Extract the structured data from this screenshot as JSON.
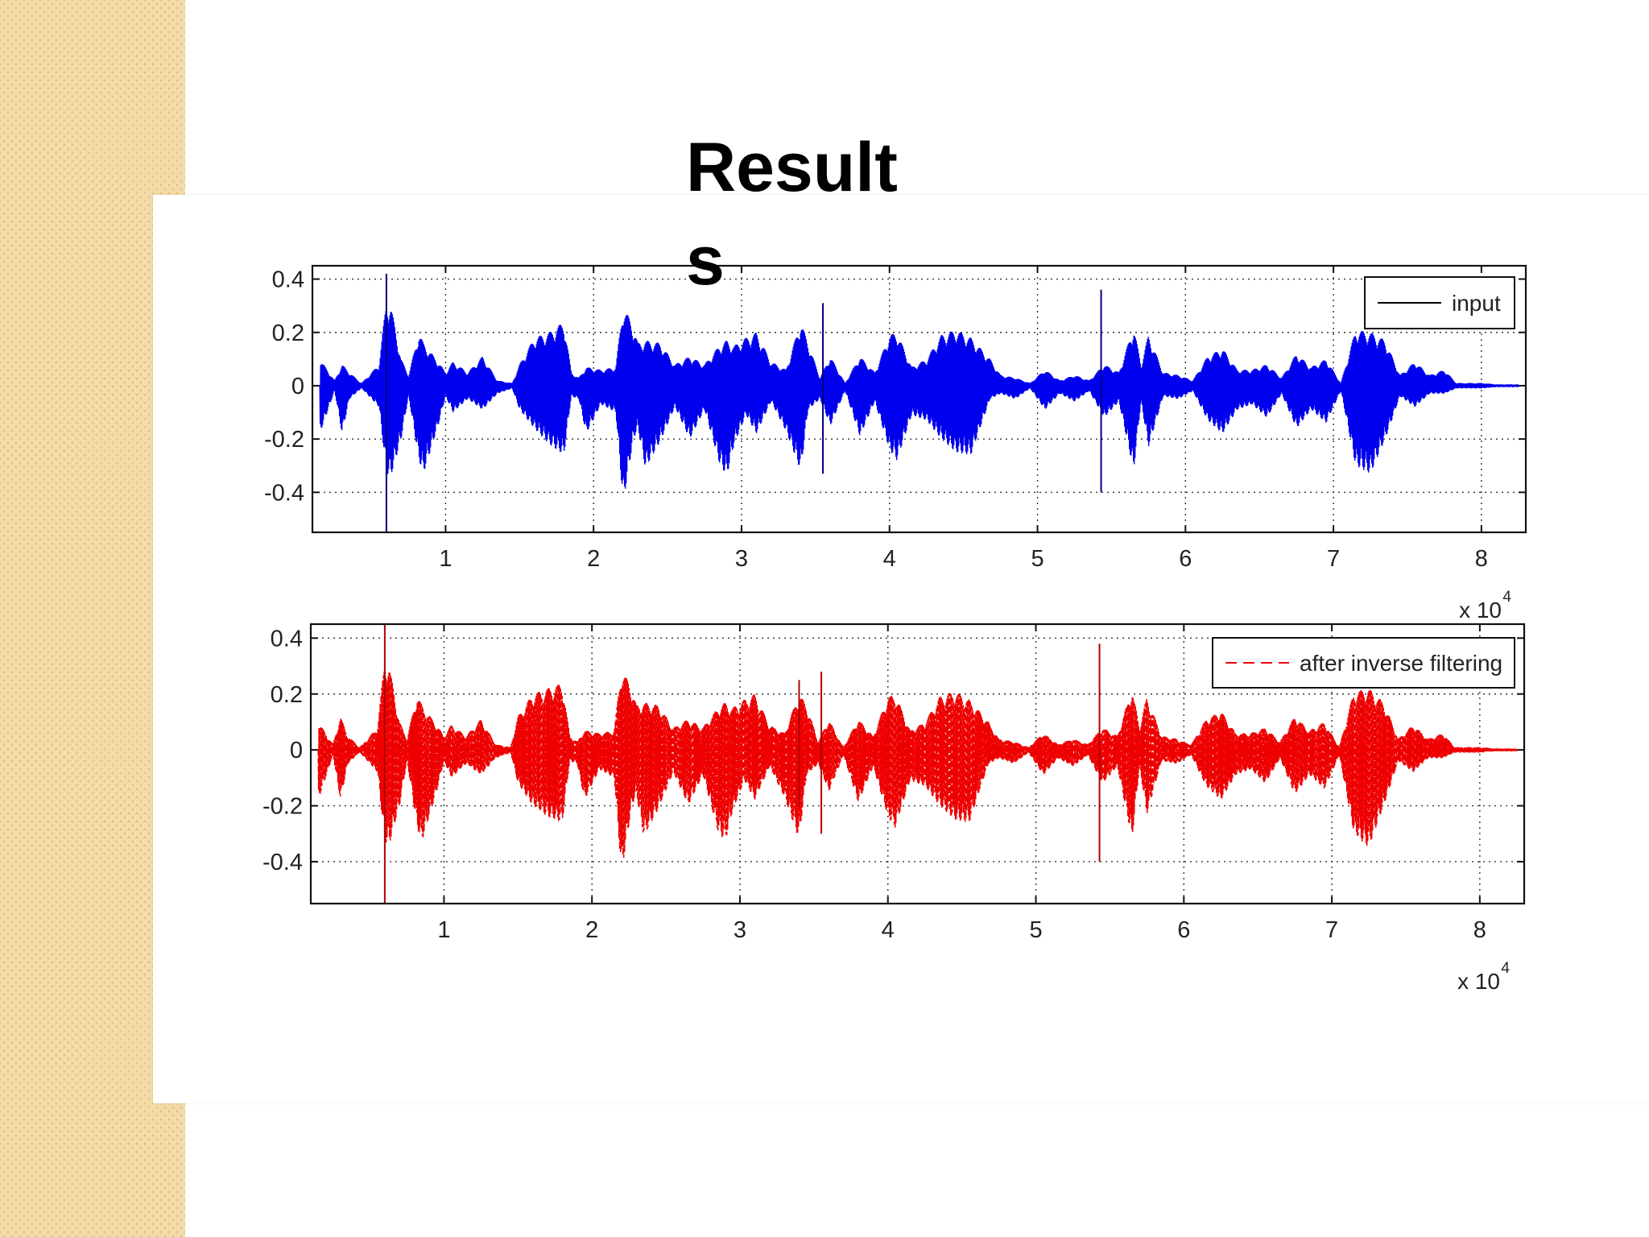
{
  "slide": {
    "title": "Results"
  },
  "chart_data": [
    {
      "type": "line",
      "color": "#0000ee",
      "line_style": "solid",
      "series": [
        {
          "name": "input"
        }
      ],
      "legend_position": "top-right",
      "grid": true,
      "grid_style": "dotted",
      "xlim": [
        1000,
        83000
      ],
      "ylim": [
        -0.55,
        0.45
      ],
      "xticks": [
        10000,
        20000,
        30000,
        40000,
        50000,
        60000,
        70000,
        80000
      ],
      "xtick_labels": [
        "1",
        "2",
        "3",
        "4",
        "5",
        "6",
        "7",
        "8"
      ],
      "yticks": [
        0.4,
        0.2,
        0,
        -0.2,
        -0.4
      ],
      "ytick_labels": [
        "0.4",
        "0.2",
        "0",
        "-0.2",
        "-0.4"
      ],
      "x_exponent_label": {
        "base": "x 10",
        "power": "4"
      },
      "x_scale_factor": 10000,
      "envelope": {
        "x": [
          1500,
          2500,
          3000,
          3500,
          4300,
          4500,
          5500,
          6000,
          6300,
          7000,
          7500,
          8200,
          8500,
          9500,
          10000,
          10500,
          11500,
          12500,
          13500,
          14500,
          15000,
          16000,
          17000,
          18000,
          18500,
          19000,
          19500,
          20500,
          21500,
          22000,
          22700,
          23000,
          23500,
          24500,
          25500,
          26500,
          27500,
          28500,
          29000,
          29500,
          30300,
          31000,
          32000,
          33000,
          34000,
          34500,
          35300,
          36000,
          37000,
          38000,
          39000,
          40000,
          40500,
          41500,
          42500,
          43500,
          44500,
          45500,
          46800,
          47500,
          48500,
          49500,
          50500,
          51500,
          52500,
          53500,
          54500,
          55500,
          56500,
          57000,
          57500,
          58500,
          59500,
          60500,
          61500,
          62500,
          63500,
          64500,
          65500,
          66500,
          67500,
          68500,
          69500,
          70500,
          71500,
          72500,
          73500,
          74500,
          75500,
          76500,
          77500,
          78300,
          79000,
          80000,
          81000,
          82500
        ],
        "upper": [
          0.1,
          0.02,
          0.08,
          0.05,
          0.01,
          0.02,
          0.08,
          0.32,
          0.3,
          0.1,
          0.04,
          0.2,
          0.16,
          0.09,
          0.05,
          0.09,
          0.05,
          0.11,
          0.02,
          0.01,
          0.08,
          0.18,
          0.2,
          0.24,
          0.05,
          0.03,
          0.07,
          0.06,
          0.07,
          0.3,
          0.22,
          0.16,
          0.17,
          0.16,
          0.08,
          0.11,
          0.08,
          0.15,
          0.17,
          0.15,
          0.18,
          0.2,
          0.09,
          0.06,
          0.24,
          0.16,
          0.03,
          0.11,
          0.01,
          0.11,
          0.05,
          0.19,
          0.2,
          0.07,
          0.1,
          0.19,
          0.21,
          0.18,
          0.1,
          0.04,
          0.03,
          0.01,
          0.06,
          0.02,
          0.04,
          0.02,
          0.08,
          0.05,
          0.22,
          0.08,
          0.19,
          0.05,
          0.04,
          0.02,
          0.11,
          0.14,
          0.06,
          0.06,
          0.08,
          0.03,
          0.12,
          0.07,
          0.1,
          0.01,
          0.21,
          0.2,
          0.17,
          0.04,
          0.09,
          0.04,
          0.06,
          0.01,
          0.01,
          0.01,
          0.005,
          0.005
        ],
        "lower": [
          -0.18,
          -0.02,
          -0.18,
          -0.05,
          -0.01,
          -0.02,
          -0.08,
          -0.33,
          -0.34,
          -0.2,
          -0.04,
          -0.28,
          -0.33,
          -0.15,
          -0.04,
          -0.1,
          -0.05,
          -0.09,
          -0.03,
          -0.01,
          -0.09,
          -0.16,
          -0.22,
          -0.26,
          -0.04,
          -0.05,
          -0.18,
          -0.07,
          -0.1,
          -0.44,
          -0.2,
          -0.16,
          -0.31,
          -0.21,
          -0.08,
          -0.2,
          -0.09,
          -0.29,
          -0.34,
          -0.22,
          -0.11,
          -0.18,
          -0.06,
          -0.17,
          -0.32,
          -0.09,
          -0.05,
          -0.15,
          -0.02,
          -0.19,
          -0.06,
          -0.24,
          -0.28,
          -0.11,
          -0.13,
          -0.2,
          -0.25,
          -0.26,
          -0.05,
          -0.03,
          -0.05,
          -0.01,
          -0.09,
          -0.03,
          -0.06,
          -0.02,
          -0.12,
          -0.06,
          -0.32,
          -0.06,
          -0.23,
          -0.04,
          -0.05,
          -0.02,
          -0.13,
          -0.18,
          -0.09,
          -0.07,
          -0.12,
          -0.03,
          -0.16,
          -0.09,
          -0.14,
          -0.02,
          -0.3,
          -0.33,
          -0.2,
          -0.04,
          -0.08,
          -0.03,
          -0.03,
          -0.01,
          -0.01,
          -0.01,
          -0.005,
          -0.005
        ]
      },
      "spikes": [
        {
          "x": 6000,
          "high": 0.42,
          "low": -0.55
        },
        {
          "x": 35500,
          "high": 0.31,
          "low": -0.33
        },
        {
          "x": 54300,
          "high": 0.36,
          "low": -0.4
        }
      ]
    },
    {
      "type": "line",
      "color": "#ee0000",
      "line_style": "dashed",
      "series": [
        {
          "name": "after inverse filtering"
        }
      ],
      "legend_position": "top-right",
      "grid": true,
      "grid_style": "dotted",
      "xlim": [
        1000,
        83000
      ],
      "ylim": [
        -0.55,
        0.45
      ],
      "xticks": [
        10000,
        20000,
        30000,
        40000,
        50000,
        60000,
        70000,
        80000
      ],
      "xtick_labels": [
        "1",
        "2",
        "3",
        "4",
        "5",
        "6",
        "7",
        "8"
      ],
      "yticks": [
        0.4,
        0.2,
        0,
        -0.2,
        -0.4
      ],
      "ytick_labels": [
        "0.4",
        "0.2",
        "0",
        "-0.2",
        "-0.4"
      ],
      "x_exponent_label": {
        "base": "x 10",
        "power": "4"
      },
      "x_scale_factor": 10000,
      "envelope": {
        "x": [
          1500,
          2500,
          3000,
          3500,
          4300,
          4500,
          5500,
          6000,
          6300,
          7000,
          7500,
          8200,
          8500,
          9500,
          10000,
          10500,
          11500,
          12500,
          13500,
          14500,
          15000,
          16000,
          17000,
          18000,
          18500,
          19000,
          19500,
          20500,
          21500,
          22000,
          22700,
          23000,
          23500,
          24500,
          25500,
          26500,
          27500,
          28500,
          29000,
          29500,
          30300,
          31000,
          32000,
          33000,
          34000,
          34500,
          35300,
          36000,
          37000,
          38000,
          39000,
          40000,
          40500,
          41500,
          42500,
          43500,
          44500,
          45500,
          46800,
          47500,
          48500,
          49500,
          50500,
          51500,
          52500,
          53500,
          54500,
          55500,
          56500,
          57000,
          57500,
          58500,
          59500,
          60500,
          61500,
          62500,
          63500,
          64500,
          65500,
          66500,
          67500,
          68500,
          69500,
          70500,
          71500,
          72500,
          73500,
          74500,
          75500,
          76500,
          77500,
          78300,
          79000,
          80000,
          81000,
          82500
        ],
        "upper": [
          0.1,
          0.02,
          0.12,
          0.05,
          0.01,
          0.02,
          0.08,
          0.32,
          0.3,
          0.1,
          0.04,
          0.2,
          0.16,
          0.09,
          0.05,
          0.09,
          0.05,
          0.11,
          0.02,
          0.01,
          0.12,
          0.2,
          0.22,
          0.24,
          0.05,
          0.03,
          0.07,
          0.06,
          0.07,
          0.29,
          0.22,
          0.16,
          0.17,
          0.16,
          0.08,
          0.11,
          0.08,
          0.15,
          0.17,
          0.15,
          0.18,
          0.2,
          0.09,
          0.06,
          0.2,
          0.16,
          0.03,
          0.11,
          0.01,
          0.11,
          0.05,
          0.19,
          0.2,
          0.07,
          0.1,
          0.19,
          0.21,
          0.18,
          0.1,
          0.04,
          0.03,
          0.01,
          0.06,
          0.02,
          0.04,
          0.02,
          0.08,
          0.05,
          0.22,
          0.08,
          0.19,
          0.05,
          0.04,
          0.02,
          0.11,
          0.14,
          0.06,
          0.06,
          0.08,
          0.03,
          0.12,
          0.07,
          0.1,
          0.01,
          0.21,
          0.22,
          0.17,
          0.04,
          0.09,
          0.04,
          0.06,
          0.01,
          0.01,
          0.01,
          0.005,
          0.005
        ],
        "lower": [
          -0.18,
          -0.02,
          -0.18,
          -0.05,
          -0.01,
          -0.02,
          -0.08,
          -0.33,
          -0.34,
          -0.2,
          -0.04,
          -0.28,
          -0.33,
          -0.15,
          -0.04,
          -0.1,
          -0.05,
          -0.09,
          -0.03,
          -0.01,
          -0.12,
          -0.2,
          -0.24,
          -0.26,
          -0.04,
          -0.05,
          -0.18,
          -0.07,
          -0.1,
          -0.44,
          -0.2,
          -0.16,
          -0.31,
          -0.21,
          -0.08,
          -0.2,
          -0.09,
          -0.29,
          -0.33,
          -0.22,
          -0.11,
          -0.18,
          -0.06,
          -0.17,
          -0.32,
          -0.09,
          -0.05,
          -0.15,
          -0.02,
          -0.19,
          -0.06,
          -0.24,
          -0.28,
          -0.11,
          -0.13,
          -0.2,
          -0.25,
          -0.26,
          -0.05,
          -0.03,
          -0.05,
          -0.01,
          -0.09,
          -0.03,
          -0.06,
          -0.02,
          -0.12,
          -0.06,
          -0.32,
          -0.06,
          -0.23,
          -0.04,
          -0.05,
          -0.02,
          -0.13,
          -0.18,
          -0.09,
          -0.07,
          -0.12,
          -0.03,
          -0.16,
          -0.09,
          -0.14,
          -0.02,
          -0.3,
          -0.35,
          -0.2,
          -0.04,
          -0.08,
          -0.03,
          -0.03,
          -0.01,
          -0.01,
          -0.01,
          -0.005,
          -0.005
        ]
      },
      "spikes": [
        {
          "x": 6000,
          "high": 0.45,
          "low": -0.55
        },
        {
          "x": 34000,
          "high": 0.25,
          "low": -0.2
        },
        {
          "x": 35500,
          "high": 0.28,
          "low": -0.3
        },
        {
          "x": 54300,
          "high": 0.38,
          "low": -0.4
        }
      ]
    }
  ]
}
